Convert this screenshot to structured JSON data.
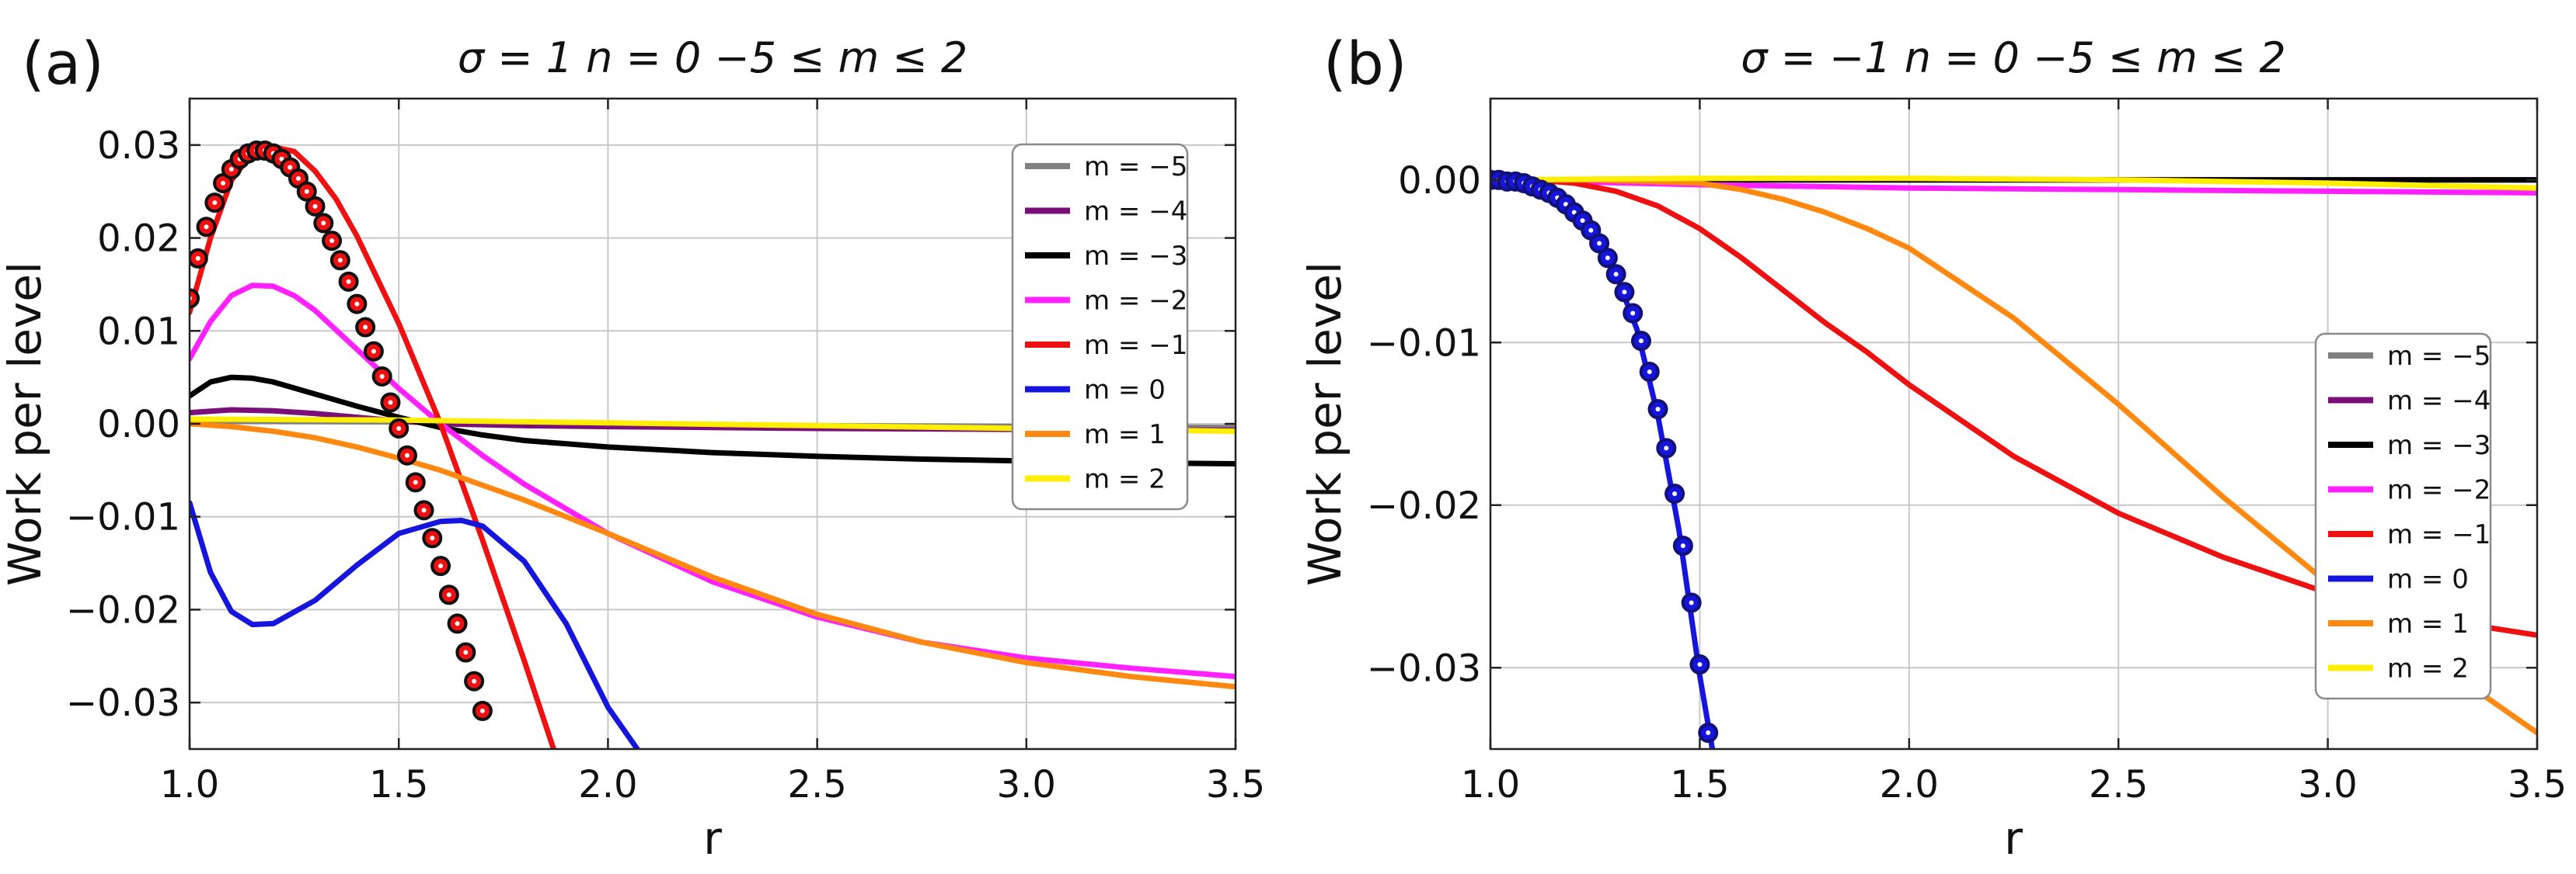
{
  "chart_data": [
    {
      "type": "line",
      "panel_label": "(a)",
      "title": "σ = 1    n = 0    −5 ≤ m ≤ 2",
      "xlabel": "r",
      "ylabel": "Work per level",
      "xlim": [
        1.0,
        3.5
      ],
      "ylim": [
        -0.035,
        0.035
      ],
      "xticks": [
        1.0,
        1.5,
        2.0,
        2.5,
        3.0,
        3.5
      ],
      "xtick_labels": [
        "1.0",
        "1.5",
        "2.0",
        "2.5",
        "3.0",
        "3.5"
      ],
      "yticks": [
        0.03,
        0.02,
        0.01,
        0.0,
        -0.01,
        -0.02,
        -0.03
      ],
      "ytick_labels": [
        "0.03",
        "0.02",
        "0.01",
        "0.00",
        "−0.01",
        "−0.02",
        "−0.03"
      ],
      "grid": true,
      "legend_position": "top-right",
      "series": [
        {
          "name": "m = −5",
          "color": "#808080",
          "x": [
            1.0,
            1.5,
            2.0,
            2.5,
            3.0,
            3.5
          ],
          "y": [
            0.0003,
            0.0002,
            0.0,
            -0.0002,
            -0.0003,
            -0.0004
          ]
        },
        {
          "name": "m = −4",
          "color": "#7a0f7a",
          "x": [
            1.0,
            1.1,
            1.2,
            1.3,
            1.4,
            1.5,
            1.6,
            1.8,
            2.0,
            2.5,
            3.0,
            3.5
          ],
          "y": [
            0.0012,
            0.0015,
            0.0014,
            0.0011,
            0.0007,
            0.0003,
            0.0,
            -0.0002,
            -0.0003,
            -0.0005,
            -0.0006,
            -0.0007
          ]
        },
        {
          "name": "m = −3",
          "color": "#000000",
          "x": [
            1.0,
            1.05,
            1.1,
            1.15,
            1.2,
            1.3,
            1.4,
            1.5,
            1.6,
            1.7,
            1.8,
            2.0,
            2.25,
            2.5,
            2.75,
            3.0,
            3.25,
            3.5
          ],
          "y": [
            0.003,
            0.0045,
            0.005,
            0.0049,
            0.0045,
            0.0032,
            0.0019,
            0.0007,
            -0.0004,
            -0.0012,
            -0.0018,
            -0.0025,
            -0.0031,
            -0.0035,
            -0.0038,
            -0.004,
            -0.0042,
            -0.0043
          ]
        },
        {
          "name": "m = −2",
          "color": "#ff22ff",
          "x": [
            1.0,
            1.05,
            1.1,
            1.15,
            1.2,
            1.25,
            1.3,
            1.4,
            1.5,
            1.6,
            1.7,
            1.8,
            2.0,
            2.25,
            2.5,
            2.75,
            3.0,
            3.25,
            3.5
          ],
          "y": [
            0.007,
            0.011,
            0.0138,
            0.0149,
            0.0148,
            0.0138,
            0.0122,
            0.008,
            0.0038,
            0.0,
            -0.0034,
            -0.0065,
            -0.0118,
            -0.017,
            -0.0208,
            -0.0235,
            -0.0252,
            -0.0263,
            -0.0272
          ]
        },
        {
          "name": "m = −1",
          "color": "#ee1111",
          "x": [
            1.0,
            1.05,
            1.1,
            1.15,
            1.2,
            1.25,
            1.3,
            1.35,
            1.4,
            1.5,
            1.6,
            1.7,
            1.8,
            1.87
          ],
          "y": [
            0.012,
            0.02,
            0.0262,
            0.0292,
            0.0298,
            0.0293,
            0.0272,
            0.0242,
            0.0202,
            0.0108,
            0.0,
            -0.0125,
            -0.0255,
            -0.035
          ]
        },
        {
          "name": "m = 0",
          "color": "#1515dd",
          "x": [
            1.0,
            1.05,
            1.1,
            1.15,
            1.2,
            1.3,
            1.4,
            1.5,
            1.6,
            1.65,
            1.7,
            1.8,
            1.9,
            2.0,
            2.07
          ],
          "y": [
            -0.0085,
            -0.016,
            -0.0202,
            -0.0216,
            -0.0215,
            -0.019,
            -0.0152,
            -0.0118,
            -0.0105,
            -0.0104,
            -0.011,
            -0.0148,
            -0.0215,
            -0.0305,
            -0.035
          ]
        },
        {
          "name": "m = 1",
          "color": "#ff8811",
          "x": [
            1.0,
            1.1,
            1.2,
            1.3,
            1.4,
            1.5,
            1.6,
            1.8,
            2.0,
            2.25,
            2.5,
            2.75,
            3.0,
            3.25,
            3.5
          ],
          "y": [
            0.0,
            -0.0003,
            -0.0008,
            -0.0015,
            -0.0025,
            -0.0037,
            -0.005,
            -0.0082,
            -0.0118,
            -0.0165,
            -0.0205,
            -0.0235,
            -0.0257,
            -0.0272,
            -0.0283
          ]
        },
        {
          "name": "m = 2",
          "color": "#ffee00",
          "x": [
            1.0,
            1.5,
            2.0,
            2.5,
            3.0,
            3.5
          ],
          "y": [
            0.0005,
            0.0004,
            0.0001,
            -0.0002,
            -0.0005,
            -0.0008
          ]
        }
      ],
      "markers": {
        "name": "dots (m = −1)",
        "edge_color": "#111111",
        "fill_color": "#ee1111",
        "x": [
          1.0,
          1.02,
          1.04,
          1.06,
          1.08,
          1.1,
          1.12,
          1.14,
          1.16,
          1.18,
          1.2,
          1.22,
          1.24,
          1.26,
          1.28,
          1.3,
          1.32,
          1.34,
          1.36,
          1.38,
          1.4,
          1.42,
          1.44,
          1.46,
          1.48,
          1.5,
          1.52,
          1.54,
          1.56,
          1.58,
          1.6,
          1.62,
          1.64,
          1.66,
          1.68,
          1.7
        ],
        "y": [
          0.0135,
          0.0178,
          0.0212,
          0.0238,
          0.0259,
          0.0274,
          0.0285,
          0.0291,
          0.0294,
          0.0294,
          0.0291,
          0.0285,
          0.0276,
          0.0264,
          0.025,
          0.0234,
          0.0216,
          0.0197,
          0.0176,
          0.0153,
          0.0129,
          0.0104,
          0.0078,
          0.0051,
          0.0023,
          -0.0005,
          -0.0034,
          -0.0063,
          -0.0093,
          -0.0123,
          -0.0153,
          -0.0184,
          -0.0215,
          -0.0246,
          -0.0277,
          -0.0309
        ]
      }
    },
    {
      "type": "line",
      "panel_label": "(b)",
      "title": "σ = −1    n = 0    −5 ≤ m ≤ 2",
      "xlabel": "r",
      "ylabel": "Work per level",
      "xlim": [
        1.0,
        3.5
      ],
      "ylim": [
        -0.035,
        0.005
      ],
      "xticks": [
        1.0,
        1.5,
        2.0,
        2.5,
        3.0,
        3.5
      ],
      "xtick_labels": [
        "1.0",
        "1.5",
        "2.0",
        "2.5",
        "3.0",
        "3.5"
      ],
      "yticks": [
        0.0,
        -0.01,
        -0.02,
        -0.03
      ],
      "ytick_labels": [
        "0.00",
        "−0.01",
        "−0.02",
        "−0.03"
      ],
      "grid": true,
      "legend_position": "bottom-right",
      "series": [
        {
          "name": "m = −5",
          "color": "#808080",
          "x": [
            1.0,
            1.5,
            2.0,
            2.5,
            3.0,
            3.5
          ],
          "y": [
            0.0,
            0.0,
            0.0,
            0.0,
            0.0,
            0.0
          ]
        },
        {
          "name": "m = −4",
          "color": "#7a0f7a",
          "x": [
            1.0,
            1.5,
            2.0,
            2.5,
            3.0,
            3.5
          ],
          "y": [
            0.0,
            0.0,
            0.0,
            0.0,
            0.0,
            0.0
          ]
        },
        {
          "name": "m = −3",
          "color": "#000000",
          "x": [
            1.0,
            1.5,
            2.0,
            2.5,
            3.0,
            3.5
          ],
          "y": [
            0.0,
            0.0,
            0.0,
            0.0,
            0.0,
            0.0
          ]
        },
        {
          "name": "m = −2",
          "color": "#ff22ff",
          "x": [
            1.0,
            1.5,
            2.0,
            2.5,
            3.0,
            3.5
          ],
          "y": [
            0.0,
            -0.0003,
            -0.0005,
            -0.0006,
            -0.0007,
            -0.0008
          ]
        },
        {
          "name": "m = −1",
          "color": "#ee1111",
          "x": [
            1.0,
            1.1,
            1.2,
            1.3,
            1.4,
            1.5,
            1.6,
            1.7,
            1.8,
            1.9,
            2.0,
            2.25,
            2.5,
            2.75,
            3.0,
            3.25,
            3.5
          ],
          "y": [
            0.0,
            0.0,
            -0.0002,
            -0.0007,
            -0.0016,
            -0.003,
            -0.0048,
            -0.0068,
            -0.0088,
            -0.0106,
            -0.0126,
            -0.017,
            -0.0205,
            -0.0232,
            -0.0254,
            -0.027,
            -0.028
          ]
        },
        {
          "name": "m = 0",
          "color": "#1515dd",
          "x": [
            1.0,
            1.05,
            1.1,
            1.15,
            1.2,
            1.25,
            1.3,
            1.35,
            1.4,
            1.45,
            1.5,
            1.53
          ],
          "y": [
            0.0,
            -0.0001,
            -0.0004,
            -0.001,
            -0.002,
            -0.0035,
            -0.0058,
            -0.0092,
            -0.0145,
            -0.0215,
            -0.0305,
            -0.035
          ]
        },
        {
          "name": "m = 1",
          "color": "#ff8811",
          "x": [
            1.0,
            1.25,
            1.5,
            1.6,
            1.7,
            1.8,
            1.9,
            2.0,
            2.25,
            2.5,
            2.75,
            3.0,
            3.25,
            3.5
          ],
          "y": [
            0.0,
            0.0,
            -0.0002,
            -0.0006,
            -0.0012,
            -0.002,
            -0.003,
            -0.0042,
            -0.0085,
            -0.0138,
            -0.0195,
            -0.0248,
            -0.0295,
            -0.034
          ]
        },
        {
          "name": "m = 2",
          "color": "#ffee00",
          "x": [
            1.0,
            1.5,
            2.0,
            2.5,
            3.0,
            3.5
          ],
          "y": [
            0.0,
            0.0001,
            0.0001,
            0.0,
            -0.0002,
            -0.0005
          ]
        }
      ],
      "markers": {
        "name": "circles (m = 0)",
        "edge_color": "#111177",
        "fill_color": "#1515dd",
        "x": [
          1.0,
          1.02,
          1.04,
          1.06,
          1.08,
          1.1,
          1.12,
          1.14,
          1.16,
          1.18,
          1.2,
          1.22,
          1.24,
          1.26,
          1.28,
          1.3,
          1.32,
          1.34,
          1.36,
          1.38,
          1.4,
          1.42,
          1.44,
          1.46,
          1.48,
          1.5,
          1.52
        ],
        "y": [
          0.0,
          0.0,
          -0.0001,
          -0.0001,
          -0.0002,
          -0.0004,
          -0.0006,
          -0.0008,
          -0.0011,
          -0.0015,
          -0.002,
          -0.0025,
          -0.0031,
          -0.0039,
          -0.0048,
          -0.0058,
          -0.0069,
          -0.0082,
          -0.0099,
          -0.0118,
          -0.0141,
          -0.0165,
          -0.0193,
          -0.0225,
          -0.026,
          -0.0298,
          -0.034
        ]
      }
    }
  ]
}
